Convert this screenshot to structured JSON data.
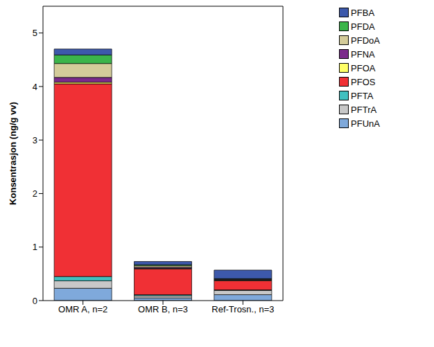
{
  "chart_data": {
    "type": "bar",
    "stacked": true,
    "y_label": "Konsentrasjon (ng/g vv)",
    "categories": [
      "OMR A, n=2",
      "OMR B, n=3",
      "Ref-Trosn., n=3"
    ],
    "ylim": [
      0,
      5.5
    ],
    "yticks": [
      0,
      1,
      2,
      3,
      4,
      5
    ],
    "legend": "right",
    "grid": false,
    "series": [
      {
        "name": "PFBA",
        "color": "#3d59ab",
        "values": [
          0.11,
          0.06,
          0.16
        ]
      },
      {
        "name": "PFDA",
        "color": "#3bb54a",
        "values": [
          0.16,
          0.02,
          0.01
        ]
      },
      {
        "name": "PFDoA",
        "color": "#d4cc9a",
        "values": [
          0.26,
          0.03,
          0.01
        ]
      },
      {
        "name": "PFNA",
        "color": "#7b2a8b",
        "values": [
          0.09,
          0.02,
          0.01
        ]
      },
      {
        "name": "PFOA",
        "color": "#ffff66",
        "values": [
          0.03,
          0.01,
          0.01
        ]
      },
      {
        "name": "PFOS",
        "color": "#f03035",
        "values": [
          3.6,
          0.48,
          0.17
        ]
      },
      {
        "name": "PFTA",
        "color": "#40c0c0",
        "values": [
          0.08,
          0.02,
          0.01
        ]
      },
      {
        "name": "PFTrA",
        "color": "#c8c8c8",
        "values": [
          0.14,
          0.04,
          0.08
        ]
      },
      {
        "name": "PFUnA",
        "color": "#7fa9db",
        "values": [
          0.23,
          0.05,
          0.11
        ]
      }
    ]
  }
}
